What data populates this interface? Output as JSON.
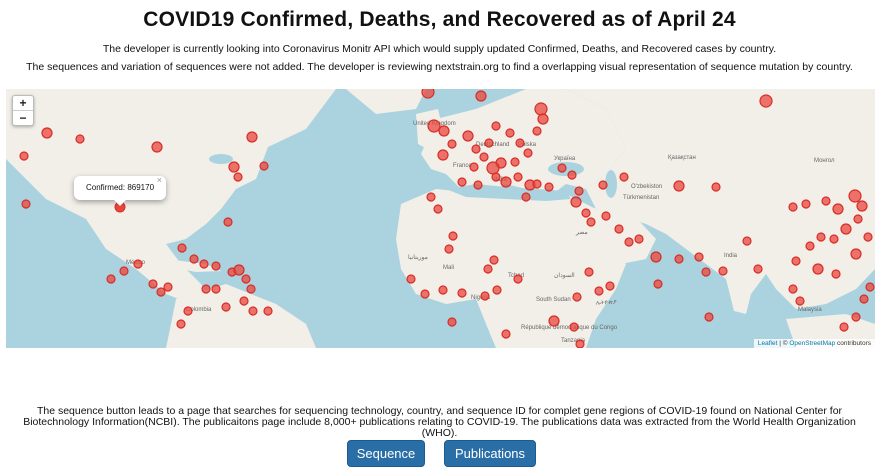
{
  "page": {
    "title": "COVID19 Confirmed, Deaths, and Recovered as of April 24",
    "intro_1": "The developer is currently looking into Coronavirus Monitr API which would supply updated Confirmed, Deaths, and Recovered cases by country.",
    "intro_2": "The sequences and variation of sequences were not added. The developer is reviewing nextstrain.org to find a overlapping visual representation of sequence mutation by country.",
    "footer": "The sequence button leads to a page that searches for sequencing technology, country, and sequence ID for complet gene regions of COVID-19 found on National Center for Biotechnology Information(NCBI). The publicaitons page include 8,000+ publications relating to COVID-19. The publications data was extracted from the World Health Organization (WHO)."
  },
  "map": {
    "zoom_in": "+",
    "zoom_out": "−",
    "popup_text": "Confirmed: 869170",
    "popup_close": "×",
    "attribution_leaflet": "Leaflet",
    "attribution_sep": " | © ",
    "attribution_osm": "OpenStreetMap",
    "attribution_tail": " contributors",
    "place_labels": [
      "United Kingdom",
      "Deutschland",
      "France",
      "Italia",
      "Polska",
      "Україна",
      "Қазақстан",
      "Монгол",
      "Türkmenistan",
      "O'zbekiston",
      "Mali",
      "Tchad",
      "Nigeria",
      "السودان",
      "South Sudan",
      "ኢትዮጵያ",
      "République démocratique du Congo",
      "Tanzania",
      "India",
      "Malaysia",
      "Colombia",
      "México",
      "مصر",
      "موريتانيا"
    ],
    "marker_color": "#e8473f",
    "land_color": "#f2efe9",
    "water_color": "#aad3df"
  },
  "buttons": {
    "sequence": "Sequence",
    "publications": "Publications",
    "color": "#2a6ea7"
  }
}
